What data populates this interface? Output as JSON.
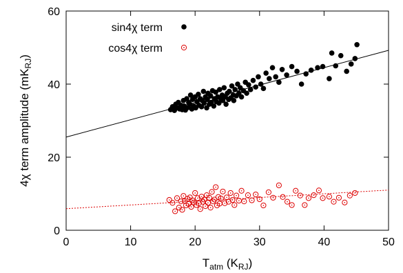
{
  "chart_data": {
    "type": "scatter",
    "xlabel": "T",
    "xlabel_sub": "atm",
    "xlabel_unit_open": " (K",
    "xlabel_unit_sub": "RJ",
    "xlabel_unit_close": ")",
    "ylabel": "4χ term amplitude (mK",
    "ylabel_sub": "RJ",
    "ylabel_close": ")",
    "xlim": [
      0,
      50
    ],
    "ylim": [
      0,
      60
    ],
    "xticks": [
      0,
      10,
      20,
      30,
      40,
      50
    ],
    "yticks": [
      0,
      20,
      40,
      60
    ],
    "legend_position": "top-left",
    "grid": false,
    "series": [
      {
        "name": "sin4χ term",
        "marker": "filled-circle",
        "color": "#000000",
        "fit": {
          "slope": 0.475,
          "intercept": 25.5
        },
        "points": [
          [
            16.2,
            33.0
          ],
          [
            16.5,
            33.8
          ],
          [
            16.8,
            32.8
          ],
          [
            17.0,
            34.5
          ],
          [
            17.2,
            33.5
          ],
          [
            17.4,
            35.0
          ],
          [
            17.6,
            33.2
          ],
          [
            17.8,
            34.2
          ],
          [
            18.0,
            33.0
          ],
          [
            18.2,
            35.5
          ],
          [
            18.3,
            34.0
          ],
          [
            18.5,
            32.9
          ],
          [
            18.7,
            36.0
          ],
          [
            18.9,
            33.6
          ],
          [
            19.0,
            35.0
          ],
          [
            19.2,
            34.5
          ],
          [
            19.3,
            37.0
          ],
          [
            19.5,
            33.2
          ],
          [
            19.6,
            35.8
          ],
          [
            19.8,
            34.0
          ],
          [
            20.0,
            36.5
          ],
          [
            20.1,
            33.5
          ],
          [
            20.3,
            35.2
          ],
          [
            20.5,
            37.2
          ],
          [
            20.6,
            34.2
          ],
          [
            20.8,
            36.0
          ],
          [
            21.0,
            33.8
          ],
          [
            21.1,
            35.5
          ],
          [
            21.3,
            38.0
          ],
          [
            21.4,
            34.8
          ],
          [
            21.6,
            36.5
          ],
          [
            21.8,
            33.5
          ],
          [
            21.9,
            35.8
          ],
          [
            22.0,
            37.5
          ],
          [
            22.2,
            34.5
          ],
          [
            22.4,
            36.8
          ],
          [
            22.5,
            35.0
          ],
          [
            22.7,
            38.2
          ],
          [
            22.9,
            34.0
          ],
          [
            23.0,
            36.0
          ],
          [
            23.2,
            37.8
          ],
          [
            23.3,
            35.2
          ],
          [
            23.5,
            36.5
          ],
          [
            23.7,
            34.8
          ],
          [
            23.8,
            38.5
          ],
          [
            24.0,
            36.0
          ],
          [
            24.2,
            37.0
          ],
          [
            24.3,
            35.5
          ],
          [
            24.5,
            39.0
          ],
          [
            24.7,
            36.5
          ],
          [
            24.8,
            34.5
          ],
          [
            25.0,
            37.5
          ],
          [
            25.2,
            35.8
          ],
          [
            25.3,
            38.0
          ],
          [
            25.5,
            36.2
          ],
          [
            25.7,
            39.5
          ],
          [
            25.9,
            37.0
          ],
          [
            26.0,
            35.5
          ],
          [
            26.2,
            38.5
          ],
          [
            26.4,
            36.8
          ],
          [
            26.6,
            40.0
          ],
          [
            26.8,
            37.5
          ],
          [
            27.0,
            39.0
          ],
          [
            27.2,
            36.5
          ],
          [
            27.5,
            38.2
          ],
          [
            27.8,
            40.5
          ],
          [
            28.0,
            37.5
          ],
          [
            28.3,
            39.8
          ],
          [
            28.6,
            38.5
          ],
          [
            29.0,
            41.0
          ],
          [
            29.4,
            39.2
          ],
          [
            29.8,
            42.0
          ],
          [
            30.2,
            40.0
          ],
          [
            30.6,
            38.8
          ],
          [
            31.0,
            43.0
          ],
          [
            31.5,
            41.5
          ],
          [
            32.0,
            44.5
          ],
          [
            32.5,
            42.0
          ],
          [
            33.0,
            40.5
          ],
          [
            33.5,
            44.0
          ],
          [
            34.2,
            42.5
          ],
          [
            35.0,
            44.8
          ],
          [
            35.8,
            43.5
          ],
          [
            36.5,
            40.0
          ],
          [
            37.2,
            42.8
          ],
          [
            38.0,
            43.8
          ],
          [
            39.0,
            44.5
          ],
          [
            39.8,
            44.8
          ],
          [
            40.8,
            41.5
          ],
          [
            41.2,
            48.5
          ],
          [
            41.8,
            45.0
          ],
          [
            42.6,
            47.8
          ],
          [
            43.5,
            43.5
          ],
          [
            44.2,
            45.5
          ],
          [
            44.8,
            47.0
          ],
          [
            45.1,
            50.8
          ]
        ]
      },
      {
        "name": "cos4χ term",
        "marker": "open-circle",
        "color": "#dd0000",
        "fit": {
          "slope": 0.102,
          "intercept": 5.9
        },
        "points": [
          [
            16.0,
            8.3
          ],
          [
            16.5,
            7.5
          ],
          [
            16.9,
            5.2
          ],
          [
            17.2,
            8.8
          ],
          [
            17.5,
            6.2
          ],
          [
            17.8,
            7.9
          ],
          [
            18.0,
            5.6
          ],
          [
            18.2,
            9.4
          ],
          [
            18.4,
            8.0
          ],
          [
            18.6,
            6.8
          ],
          [
            18.8,
            8.6
          ],
          [
            19.0,
            7.2
          ],
          [
            19.2,
            9.0
          ],
          [
            19.4,
            6.4
          ],
          [
            19.6,
            8.2
          ],
          [
            19.8,
            7.6
          ],
          [
            20.0,
            10.2
          ],
          [
            20.2,
            6.9
          ],
          [
            20.4,
            8.8
          ],
          [
            20.6,
            7.4
          ],
          [
            20.8,
            5.8
          ],
          [
            21.0,
            9.2
          ],
          [
            21.2,
            7.8
          ],
          [
            21.4,
            8.4
          ],
          [
            21.6,
            6.6
          ],
          [
            21.8,
            9.6
          ],
          [
            22.0,
            7.5
          ],
          [
            22.2,
            8.9
          ],
          [
            22.4,
            6.2
          ],
          [
            22.6,
            10.5
          ],
          [
            22.8,
            7.9
          ],
          [
            23.0,
            8.4
          ],
          [
            23.2,
            11.8
          ],
          [
            23.4,
            6.8
          ],
          [
            23.6,
            9.1
          ],
          [
            23.8,
            7.3
          ],
          [
            24.0,
            8.7
          ],
          [
            24.3,
            10.6
          ],
          [
            24.6,
            7.4
          ],
          [
            24.9,
            9.0
          ],
          [
            25.2,
            7.8
          ],
          [
            25.5,
            10.2
          ],
          [
            25.8,
            8.3
          ],
          [
            26.1,
            6.9
          ],
          [
            26.4,
            9.5
          ],
          [
            26.8,
            8.1
          ],
          [
            27.2,
            10.8
          ],
          [
            27.6,
            7.9
          ],
          [
            28.2,
            9.6
          ],
          [
            28.8,
            8.2
          ],
          [
            29.4,
            9.8
          ],
          [
            30.0,
            8.5
          ],
          [
            30.6,
            6.8
          ],
          [
            31.4,
            10.4
          ],
          [
            32.1,
            8.9
          ],
          [
            33.0,
            12.3
          ],
          [
            33.6,
            9.1
          ],
          [
            34.3,
            7.8
          ],
          [
            35.0,
            6.9
          ],
          [
            35.6,
            10.8
          ],
          [
            36.3,
            9.5
          ],
          [
            37.0,
            6.9
          ],
          [
            37.6,
            8.8
          ],
          [
            38.4,
            9.6
          ],
          [
            39.2,
            10.9
          ],
          [
            39.8,
            8.8
          ],
          [
            40.8,
            9.2
          ],
          [
            41.5,
            7.8
          ],
          [
            42.3,
            8.9
          ],
          [
            43.2,
            7.6
          ],
          [
            44.0,
            9.5
          ],
          [
            44.8,
            10.2
          ]
        ]
      }
    ]
  }
}
